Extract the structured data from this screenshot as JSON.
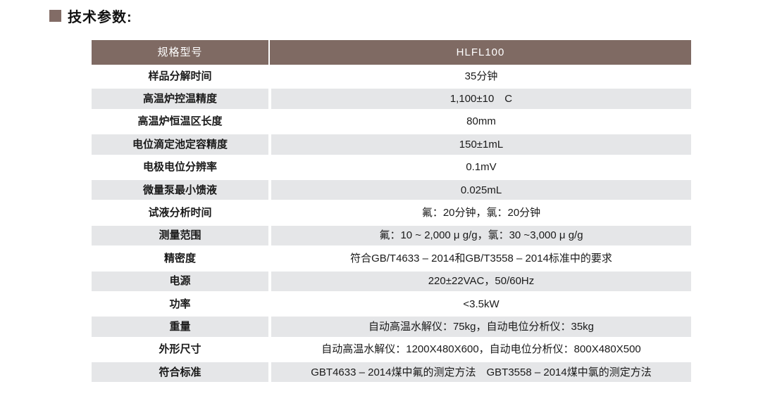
{
  "page": {
    "title": "技术参数:"
  },
  "table": {
    "header": {
      "col1": "规格型号",
      "col2": "HLFL100"
    },
    "rows": [
      {
        "label": "样品分解时间",
        "value": "35分钟"
      },
      {
        "label": "高温炉控温精度",
        "value": "1,100±10　C"
      },
      {
        "label": "高温炉恒温区长度",
        "value": "80mm"
      },
      {
        "label": "电位滴定池定容精度",
        "value": "150±1mL"
      },
      {
        "label": "电极电位分辨率",
        "value": "0.1mV"
      },
      {
        "label": "微量泵最小馈液",
        "value": "0.025mL"
      },
      {
        "label": "试液分析时间",
        "value": "氟：20分钟，氯：20分钟"
      },
      {
        "label": "测量范围",
        "value": "氟：10 ~ 2,000 μ g/g，氯：30 ~3,000 μ g/g"
      },
      {
        "label": "精密度",
        "value": "符合GB/T4633 – 2014和GB/T3558 – 2014标准中的要求"
      },
      {
        "label": "电源",
        "value": "220±22VAC，50/60Hz"
      },
      {
        "label": "功率",
        "value": "<3.5kW"
      },
      {
        "label": "重量",
        "value": "自动高温水解仪：75kg，自动电位分析仪：35kg"
      },
      {
        "label": "外形尺寸",
        "value": "自动高温水解仪：1200X480X600，自动电位分析仪：800X480X500"
      },
      {
        "label": "符合标准",
        "value": "GBT4633 – 2014煤中氟的测定方法　GBT3558 – 2014煤中氯的测定方法"
      }
    ]
  },
  "colors": {
    "header_bg": "#7F6A63",
    "row_alt_bg": "#E5E6E8",
    "bullet": "#826C66",
    "text": "#1A1A1A"
  }
}
